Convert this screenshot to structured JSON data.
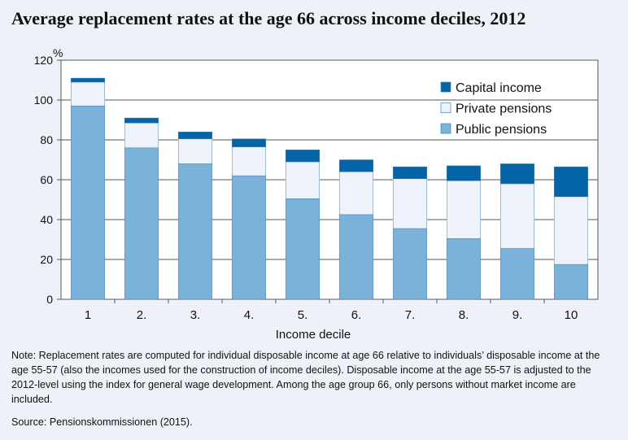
{
  "chart_data": {
    "type": "bar",
    "stacked": true,
    "title": "Average replacement rates at the age 66 across income deciles, 2012",
    "xlabel": "Income decile",
    "ylabel": "%",
    "ylim": [
      0,
      120
    ],
    "yticks": [
      0,
      20,
      40,
      60,
      80,
      100,
      120
    ],
    "grid": true,
    "legend_position": "top-right",
    "categories": [
      "1",
      "2.",
      "3.",
      "4.",
      "5.",
      "6.",
      "7.",
      "8.",
      "9.",
      "10"
    ],
    "series": [
      {
        "name": "Public pensions",
        "color": "#7ab2d9",
        "values": [
          97,
          76,
          68,
          62,
          50.5,
          42.5,
          35.5,
          30.5,
          25.5,
          17.5
        ]
      },
      {
        "name": "Private pensions",
        "color": "#eef3fb",
        "values": [
          12,
          12.5,
          12.5,
          14.5,
          18.5,
          21.5,
          25,
          29,
          32.5,
          34
        ]
      },
      {
        "name": "Capital income",
        "color": "#0564a8",
        "values": [
          2,
          2.5,
          3.5,
          4,
          6,
          6,
          6,
          7.5,
          10,
          15
        ]
      }
    ],
    "legend_order": [
      "Capital income",
      "Private pensions",
      "Public pensions"
    ]
  },
  "note": "Note: Replacement rates are computed for individual disposable income at age 66 relative to individuals’ disposable income at the age 55-57 (also the incomes used for the construction of income deciles). Disposable income at the age 55-57 is adjusted to the 2012-level using the index for general wage development. Among the age group 66, only persons without market income are included.",
  "source": "Source: Pensionskommissionen (2015)."
}
